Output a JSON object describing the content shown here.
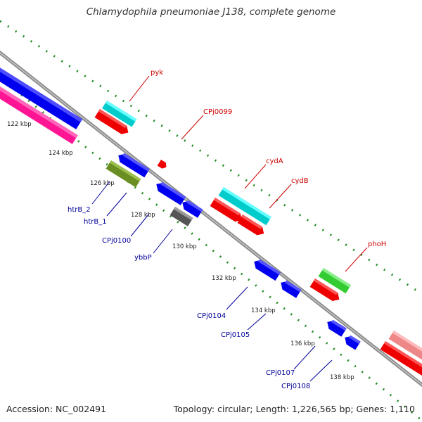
{
  "title": "Chlamydophila pneumoniae J138, complete genome",
  "footer": {
    "accession": "Accession: NC_002491",
    "summary": "Topology: circular; Length: 1,226,565 bp; Genes: 1,110"
  },
  "ticks": [
    "122 kbp",
    "124 kbp",
    "126 kbp",
    "128 kbp",
    "130 kbp",
    "132 kbp",
    "134 kbp",
    "136 kbp",
    "138 kbp"
  ],
  "genes_forward": [
    {
      "label": "pyk",
      "color": "#cc0000"
    },
    {
      "label": "CPj0099",
      "color": "#cc0000"
    },
    {
      "label": "cydA",
      "color": "#cc0000"
    },
    {
      "label": "cydB",
      "color": "#cc0000"
    },
    {
      "label": "phoH",
      "color": "#cc0000"
    }
  ],
  "genes_reverse": [
    {
      "label": "htrB_2",
      "color": "#000099"
    },
    {
      "label": "htrB_1",
      "color": "#000099"
    },
    {
      "label": "CPj0100",
      "color": "#000099"
    },
    {
      "label": "ybbP",
      "color": "#000099"
    },
    {
      "label": "CPj0104",
      "color": "#000099"
    },
    {
      "label": "CPj0105",
      "color": "#000099"
    },
    {
      "label": "CPj0107",
      "color": "#000099"
    },
    {
      "label": "CPj0108",
      "color": "#000099"
    }
  ],
  "colors": {
    "backbone": "#8c8c8c",
    "tick": "#228b22",
    "cds_forward": "#ff0000",
    "cds_reverse": "#0000ff",
    "cyan": "#00cccc",
    "green": "#33cc33",
    "olive": "#6b8e23",
    "grey": "#666666",
    "magenta": "#ff1493",
    "pink": "#ff8080"
  }
}
